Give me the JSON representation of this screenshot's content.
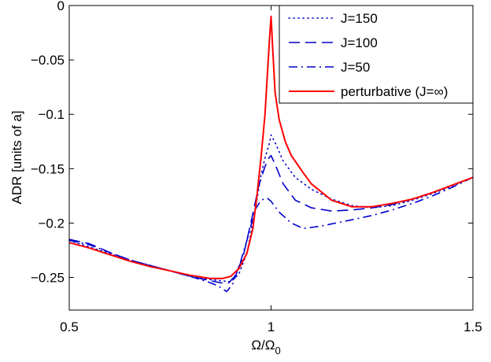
{
  "chart_data": {
    "type": "line",
    "title": "",
    "xlabel": "Ω/Ω",
    "xlabel_subscript": "0",
    "ylabel": "ADR [units of a]",
    "xlim": [
      0.5,
      1.5
    ],
    "ylim": [
      -0.28,
      0
    ],
    "xticks": [
      0.5,
      1,
      1.5
    ],
    "xtick_labels": [
      "0.5",
      "1",
      "1.5"
    ],
    "yticks": [
      0,
      -0.05,
      -0.1,
      -0.15,
      -0.2,
      -0.25
    ],
    "ytick_labels": [
      "0",
      "−0.05",
      "−0.1",
      "−0.15",
      "−0.2",
      "−0.25"
    ],
    "grid": false,
    "legend_position": "top-right",
    "series": [
      {
        "name": "J=150",
        "color": "#0000cc",
        "style": "dotted",
        "points": [
          [
            0.5,
            -0.216
          ],
          [
            0.55,
            -0.222
          ],
          [
            0.6,
            -0.228
          ],
          [
            0.65,
            -0.234
          ],
          [
            0.7,
            -0.239
          ],
          [
            0.75,
            -0.244
          ],
          [
            0.8,
            -0.249
          ],
          [
            0.85,
            -0.252
          ],
          [
            0.875,
            -0.253
          ],
          [
            0.9,
            -0.254
          ],
          [
            0.92,
            -0.247
          ],
          [
            0.94,
            -0.228
          ],
          [
            0.96,
            -0.19
          ],
          [
            0.975,
            -0.156
          ],
          [
            0.985,
            -0.14
          ],
          [
            0.995,
            -0.128
          ],
          [
            1.0,
            -0.119
          ],
          [
            1.01,
            -0.126
          ],
          [
            1.03,
            -0.143
          ],
          [
            1.06,
            -0.158
          ],
          [
            1.1,
            -0.169
          ],
          [
            1.15,
            -0.178
          ],
          [
            1.2,
            -0.184
          ],
          [
            1.25,
            -0.186
          ],
          [
            1.3,
            -0.184
          ],
          [
            1.35,
            -0.179
          ],
          [
            1.4,
            -0.173
          ],
          [
            1.45,
            -0.166
          ],
          [
            1.5,
            -0.158
          ]
        ]
      },
      {
        "name": "J=100",
        "color": "#0000cc",
        "style": "dashed",
        "points": [
          [
            0.5,
            -0.215
          ],
          [
            0.55,
            -0.219
          ],
          [
            0.6,
            -0.227
          ],
          [
            0.65,
            -0.234
          ],
          [
            0.7,
            -0.239
          ],
          [
            0.75,
            -0.244
          ],
          [
            0.8,
            -0.249
          ],
          [
            0.85,
            -0.253
          ],
          [
            0.875,
            -0.255
          ],
          [
            0.895,
            -0.255
          ],
          [
            0.91,
            -0.249
          ],
          [
            0.93,
            -0.232
          ],
          [
            0.95,
            -0.2
          ],
          [
            0.97,
            -0.165
          ],
          [
            0.985,
            -0.148
          ],
          [
            0.995,
            -0.14
          ],
          [
            1.0,
            -0.138
          ],
          [
            1.01,
            -0.146
          ],
          [
            1.03,
            -0.164
          ],
          [
            1.06,
            -0.179
          ],
          [
            1.1,
            -0.186
          ],
          [
            1.15,
            -0.189
          ],
          [
            1.2,
            -0.188
          ],
          [
            1.25,
            -0.186
          ],
          [
            1.3,
            -0.183
          ],
          [
            1.35,
            -0.178
          ],
          [
            1.4,
            -0.172
          ],
          [
            1.45,
            -0.165
          ],
          [
            1.5,
            -0.158
          ]
        ]
      },
      {
        "name": "J=50",
        "color": "#0000cc",
        "style": "dashdot",
        "points": [
          [
            0.5,
            -0.216
          ],
          [
            0.55,
            -0.22
          ],
          [
            0.6,
            -0.227
          ],
          [
            0.65,
            -0.234
          ],
          [
            0.7,
            -0.239
          ],
          [
            0.75,
            -0.244
          ],
          [
            0.8,
            -0.249
          ],
          [
            0.85,
            -0.255
          ],
          [
            0.87,
            -0.258
          ],
          [
            0.89,
            -0.263
          ],
          [
            0.905,
            -0.256
          ],
          [
            0.925,
            -0.235
          ],
          [
            0.945,
            -0.21
          ],
          [
            0.96,
            -0.188
          ],
          [
            0.975,
            -0.179
          ],
          [
            0.99,
            -0.177
          ],
          [
            1.0,
            -0.18
          ],
          [
            1.02,
            -0.19
          ],
          [
            1.05,
            -0.2
          ],
          [
            1.08,
            -0.205
          ],
          [
            1.12,
            -0.203
          ],
          [
            1.2,
            -0.197
          ],
          [
            1.25,
            -0.193
          ],
          [
            1.3,
            -0.188
          ],
          [
            1.35,
            -0.182
          ],
          [
            1.4,
            -0.175
          ],
          [
            1.45,
            -0.167
          ],
          [
            1.5,
            -0.158
          ]
        ]
      },
      {
        "name": "perturbative (J=∞)",
        "color": "#ff0000",
        "style": "solid",
        "points": [
          [
            0.5,
            -0.218
          ],
          [
            0.55,
            -0.223
          ],
          [
            0.6,
            -0.229
          ],
          [
            0.65,
            -0.235
          ],
          [
            0.7,
            -0.24
          ],
          [
            0.75,
            -0.244
          ],
          [
            0.8,
            -0.248
          ],
          [
            0.85,
            -0.251
          ],
          [
            0.88,
            -0.251
          ],
          [
            0.9,
            -0.249
          ],
          [
            0.92,
            -0.242
          ],
          [
            0.94,
            -0.228
          ],
          [
            0.955,
            -0.205
          ],
          [
            0.965,
            -0.175
          ],
          [
            0.975,
            -0.14
          ],
          [
            0.985,
            -0.1
          ],
          [
            0.993,
            -0.05
          ],
          [
            0.998,
            -0.02
          ],
          [
            1.0,
            -0.01
          ],
          [
            1.004,
            -0.04
          ],
          [
            1.01,
            -0.08
          ],
          [
            1.02,
            -0.105
          ],
          [
            1.035,
            -0.125
          ],
          [
            1.05,
            -0.138
          ],
          [
            1.08,
            -0.154
          ],
          [
            1.1,
            -0.164
          ],
          [
            1.15,
            -0.179
          ],
          [
            1.2,
            -0.185
          ],
          [
            1.25,
            -0.185
          ],
          [
            1.3,
            -0.182
          ],
          [
            1.35,
            -0.178
          ],
          [
            1.4,
            -0.172
          ],
          [
            1.45,
            -0.165
          ],
          [
            1.5,
            -0.158
          ]
        ]
      }
    ]
  }
}
